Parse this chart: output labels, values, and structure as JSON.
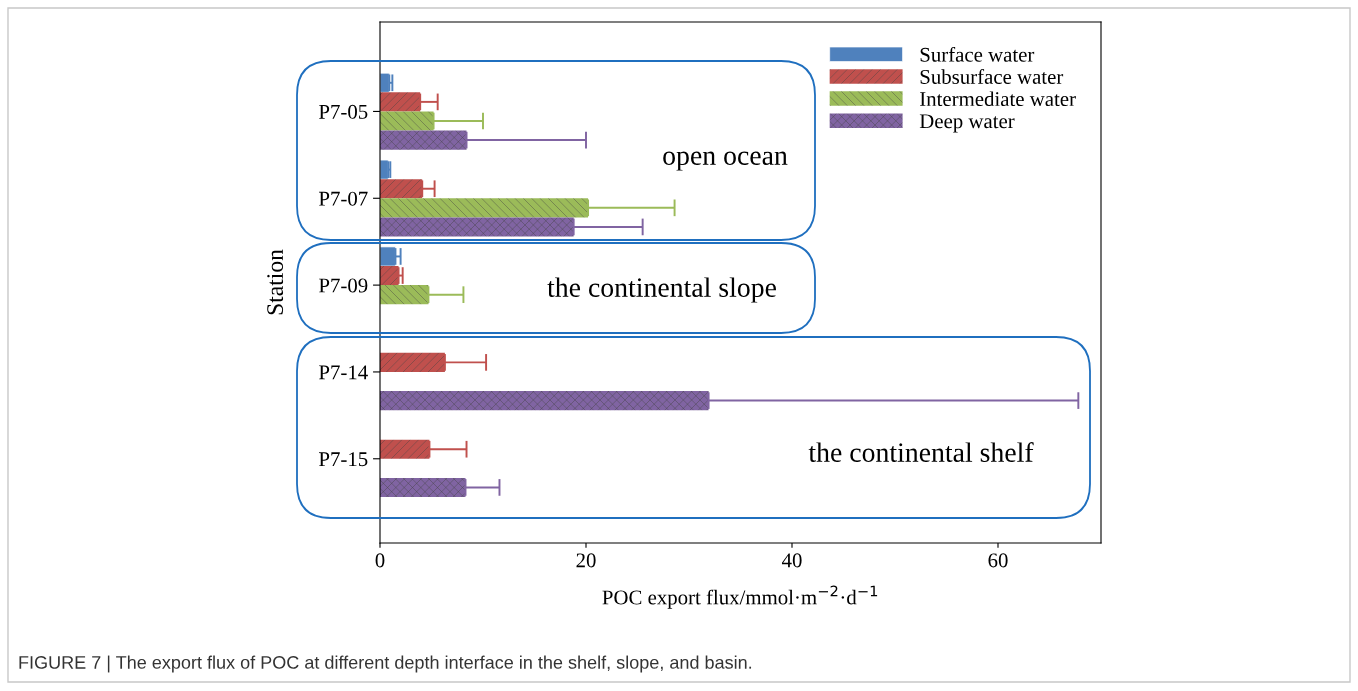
{
  "chart_data": {
    "type": "bar",
    "orientation": "horizontal",
    "xlabel": "POC export flux/mmol·m$^{−2}$·d$^{−1}$",
    "ylabel": "Station",
    "categories": [
      "P7-05",
      "P7-07",
      "P7-09",
      "P7-14",
      "P7-15"
    ],
    "series": [
      {
        "name": "Surface water",
        "color": "#4f81bd",
        "values": [
          0.9,
          0.8,
          1.5,
          null,
          null
        ],
        "errors": [
          [
            0.9,
            1.2
          ],
          [
            0.8,
            1.0
          ],
          [
            1.5,
            2.0
          ],
          null,
          null
        ]
      },
      {
        "name": "Subsurface water",
        "color": "#c0504d",
        "values": [
          3.9,
          4.1,
          1.8,
          6.3,
          4.8
        ],
        "errors": [
          [
            3.9,
            5.6
          ],
          [
            4.1,
            5.3
          ],
          [
            1.8,
            2.2
          ],
          [
            6.3,
            10.3
          ],
          [
            4.8,
            8.4
          ]
        ]
      },
      {
        "name": "Intermediate water",
        "color": "#9bbb59",
        "values": [
          5.2,
          20.2,
          4.7,
          null,
          null
        ],
        "errors": [
          [
            5.2,
            10.0
          ],
          [
            20.2,
            28.6
          ],
          [
            4.7,
            8.1
          ],
          null,
          null
        ]
      },
      {
        "name": "Deep water",
        "color": "#8064a2",
        "values": [
          8.4,
          18.8,
          null,
          31.9,
          8.3
        ],
        "errors": [
          [
            8.4,
            20.0
          ],
          [
            18.8,
            25.5
          ],
          null,
          [
            31.9,
            67.8
          ],
          [
            8.3,
            11.6
          ]
        ]
      }
    ],
    "xlim": [
      0,
      70
    ],
    "xticks": [
      0,
      20,
      40,
      60
    ],
    "grid": false,
    "legend": "top right",
    "annotations": [
      "open ocean",
      "the continental slope",
      "the continental shelf",
      "FIGURE 7 | The export flux of POC at different depth interface in the shelf, slope, and basin."
    ]
  }
}
